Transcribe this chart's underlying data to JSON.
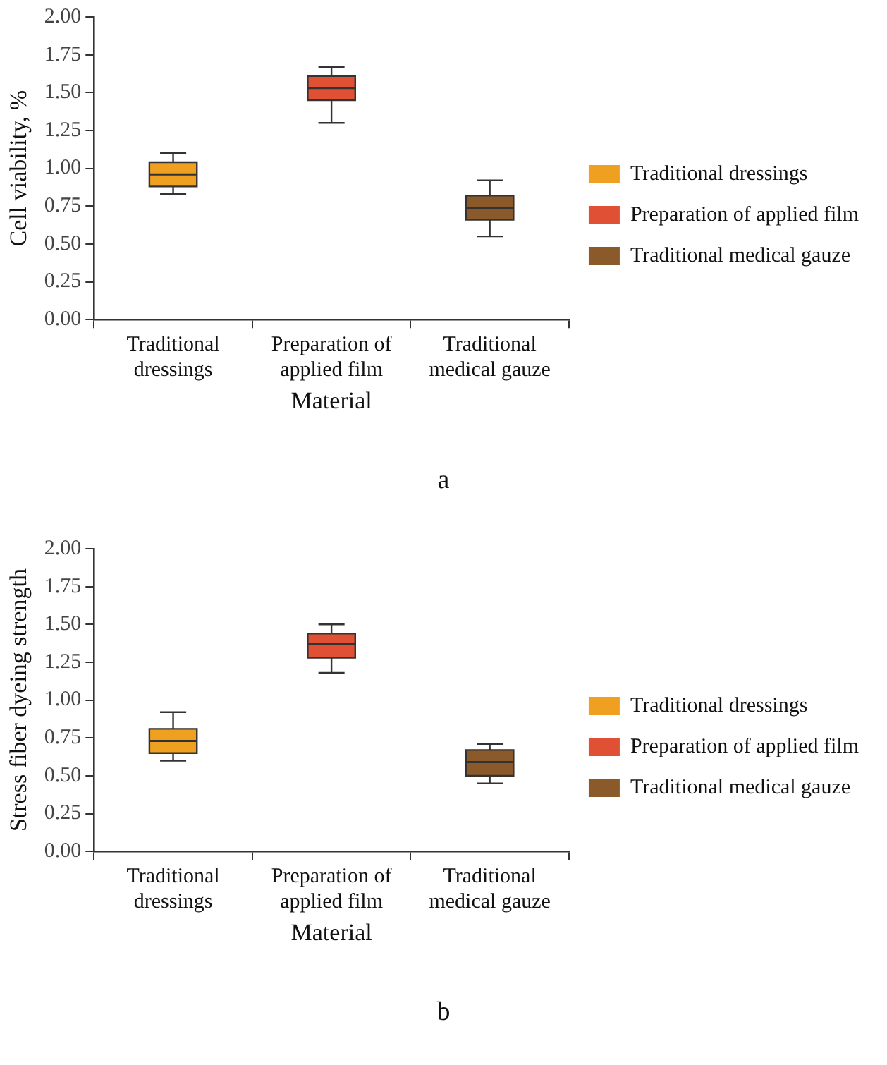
{
  "chart_data": [
    {
      "type": "box",
      "xlabel": "Material",
      "ylabel": "Cell viability, %",
      "categories": [
        "Traditional dressings",
        "Preparation of applied film",
        "Traditional medical gauze"
      ],
      "series": [
        {
          "name": "Traditional dressings",
          "color": "#f0a020",
          "boxes": [
            {
              "low": 0.83,
              "q1": 0.88,
              "median": 0.96,
              "q3": 1.04,
              "high": 1.1
            },
            null,
            null
          ]
        },
        {
          "name": "Preparation of applied film",
          "color": "#e05035",
          "boxes": [
            null,
            {
              "low": 1.3,
              "q1": 1.45,
              "median": 1.53,
              "q3": 1.61,
              "high": 1.67
            },
            null
          ]
        },
        {
          "name": "Traditional medical gauze",
          "color": "#8b5a2b",
          "boxes": [
            null,
            null,
            {
              "low": 0.55,
              "q1": 0.66,
              "median": 0.74,
              "q3": 0.82,
              "high": 0.92
            }
          ]
        }
      ],
      "ylim": [
        0,
        2
      ],
      "yticks": [
        {
          "value": 0,
          "label": "0.00"
        },
        {
          "value": 0.25,
          "label": "0.25"
        },
        {
          "value": 0.5,
          "label": "0.50"
        },
        {
          "value": 0.75,
          "label": "0.75"
        },
        {
          "value": 1,
          "label": "1.00"
        },
        {
          "value": 1.25,
          "label": "1.25"
        },
        {
          "value": 1.5,
          "label": "1.50"
        },
        {
          "value": 1.75,
          "label": "1.75"
        },
        {
          "value": 2,
          "label": "2.00"
        }
      ],
      "legend": "right",
      "annotations": [
        "a"
      ]
    },
    {
      "type": "box",
      "xlabel": "Material",
      "ylabel": "Stress fiber dyeing strength",
      "categories": [
        "Traditional dressings",
        "Preparation of applied film",
        "Traditional medical gauze"
      ],
      "series": [
        {
          "name": "Traditional dressings",
          "color": "#f0a020",
          "boxes": [
            {
              "low": 0.6,
              "q1": 0.65,
              "median": 0.73,
              "q3": 0.81,
              "high": 0.92
            },
            null,
            null
          ]
        },
        {
          "name": "Preparation of applied film",
          "color": "#e05035",
          "boxes": [
            null,
            {
              "low": 1.18,
              "q1": 1.28,
              "median": 1.37,
              "q3": 1.44,
              "high": 1.5
            },
            null
          ]
        },
        {
          "name": "Traditional medical gauze",
          "color": "#8b5a2b",
          "boxes": [
            null,
            null,
            {
              "low": 0.45,
              "q1": 0.5,
              "median": 0.59,
              "q3": 0.67,
              "high": 0.71
            }
          ]
        }
      ],
      "ylim": [
        0,
        2
      ],
      "yticks": [
        {
          "value": 0,
          "label": "0.00"
        },
        {
          "value": 0.25,
          "label": "0.25"
        },
        {
          "value": 0.5,
          "label": "0.50"
        },
        {
          "value": 0.75,
          "label": "0.75"
        },
        {
          "value": 1,
          "label": "1.00"
        },
        {
          "value": 1.25,
          "label": "1.25"
        },
        {
          "value": 1.5,
          "label": "1.50"
        },
        {
          "value": 1.75,
          "label": "1.75"
        },
        {
          "value": 2,
          "label": "2.00"
        }
      ],
      "legend": "right",
      "annotations": [
        "b"
      ]
    }
  ]
}
